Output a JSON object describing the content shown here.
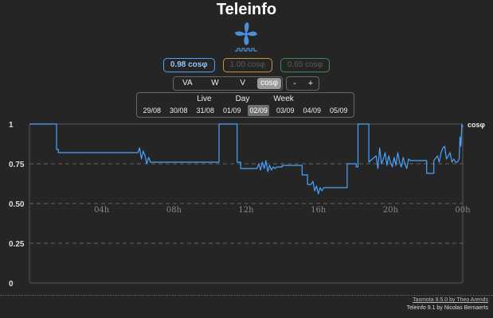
{
  "header": {
    "title": "Teleinfo"
  },
  "logo": {
    "icon": "fan-meter-logo-icon",
    "color": "#4a90d9"
  },
  "phases": [
    {
      "label": "0.98 cosφ",
      "color": "#4aa3ff",
      "active": true
    },
    {
      "label": "1.00 cosφ",
      "color": "#c9953b",
      "active": false
    },
    {
      "label": "0.65 cosφ",
      "color": "#3f8a56",
      "active": false
    }
  ],
  "units": {
    "items": [
      "VA",
      "W",
      "V",
      "cosφ"
    ],
    "selected": "cosφ"
  },
  "zoom": {
    "minus": "-",
    "plus": "+"
  },
  "periods": {
    "tabs": [
      "Live",
      "Day",
      "Week"
    ],
    "days": [
      "29/08",
      "30/08",
      "31/08",
      "01/09",
      "02/09",
      "03/09",
      "04/09",
      "05/09"
    ],
    "selected_day": "02/09"
  },
  "chart_data": {
    "type": "line",
    "unit_label": "cosφ",
    "y_ticks": [
      "1",
      "0.75",
      "0.50",
      "0.25",
      "0"
    ],
    "ylim": [
      0,
      1
    ],
    "x_ticks": [
      "04h",
      "08h",
      "12h",
      "16h",
      "20h",
      "00h"
    ],
    "x_tick_hours": [
      4,
      8,
      12,
      16,
      20,
      24
    ],
    "xlim": [
      0,
      24
    ],
    "grid": "dashed horizontal",
    "series": [
      {
        "color": "#4aa3ff",
        "x": [
          0,
          1.5,
          1.5,
          1.6,
          1.6,
          6.0,
          6.1,
          6.2,
          6.3,
          6.4,
          6.5,
          6.6,
          6.7,
          6.8,
          7.2,
          7.2,
          8.6,
          8.6,
          10.5,
          10.5,
          10.6,
          10.6,
          11.0,
          11.0,
          11.5,
          11.5,
          11.7,
          11.7,
          12.6,
          12.7,
          12.8,
          12.9,
          13.0,
          13.1,
          13.2,
          13.3,
          13.4,
          13.5,
          13.6,
          13.7,
          13.8,
          14.0,
          14.0,
          15.1,
          15.1,
          15.4,
          15.4,
          15.6,
          15.7,
          15.8,
          15.9,
          16.0,
          16.1,
          16.2,
          16.3,
          16.4,
          16.4,
          17.6,
          17.6,
          18.1,
          18.1,
          18.2,
          18.2,
          18.8,
          18.8,
          19.2,
          19.3,
          19.4,
          19.5,
          19.6,
          19.7,
          19.8,
          19.9,
          20.0,
          20.1,
          20.2,
          20.3,
          20.4,
          20.5,
          20.6,
          20.7,
          20.8,
          20.9,
          21.0,
          21.1,
          21.3,
          21.3,
          22.0,
          22.0,
          22.4,
          22.4,
          22.6,
          22.7,
          22.8,
          22.9,
          23.0,
          23.1,
          23.2,
          23.3,
          23.4,
          23.5,
          23.6,
          23.7,
          23.8,
          23.85,
          23.9,
          23.95,
          24.0
        ],
        "y": [
          1.0,
          1.0,
          0.84,
          0.84,
          0.82,
          0.82,
          0.85,
          0.78,
          0.83,
          0.8,
          0.75,
          0.79,
          0.76,
          0.76,
          0.76,
          0.76,
          0.76,
          0.76,
          0.76,
          1.0,
          1.0,
          1.0,
          1.0,
          1.0,
          1.0,
          0.76,
          0.76,
          0.72,
          0.72,
          0.75,
          0.71,
          0.76,
          0.72,
          0.77,
          0.7,
          0.74,
          0.71,
          0.73,
          0.72,
          0.73,
          0.73,
          0.73,
          0.74,
          0.74,
          0.68,
          0.68,
          0.62,
          0.62,
          0.64,
          0.58,
          0.61,
          0.56,
          0.6,
          0.58,
          0.6,
          0.6,
          0.6,
          0.6,
          0.75,
          0.75,
          0.73,
          0.73,
          1.0,
          1.0,
          0.76,
          0.8,
          0.72,
          0.85,
          0.75,
          0.78,
          0.82,
          0.74,
          0.8,
          0.76,
          0.73,
          0.79,
          0.74,
          0.82,
          0.76,
          0.73,
          0.79,
          0.75,
          0.72,
          0.78,
          0.77,
          0.77,
          0.77,
          0.77,
          0.69,
          0.69,
          0.77,
          0.8,
          0.76,
          0.82,
          0.85,
          0.86,
          0.78,
          0.8,
          0.82,
          0.76,
          0.78,
          0.76,
          0.76,
          0.78,
          0.92,
          0.86,
          1.0,
          0.98
        ]
      }
    ]
  },
  "footer": {
    "link": "Tasmota 9.5.0 by Theo Arends",
    "text": "Teleinfo 9.1 by Nicolas Bernaerts"
  }
}
